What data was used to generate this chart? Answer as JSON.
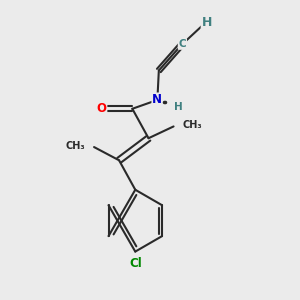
{
  "background_color": "#ebebeb",
  "bond_color": "#2a2a2a",
  "bond_width": 1.5,
  "atom_colors": {
    "O": "#ff0000",
    "N": "#0000cc",
    "Cl": "#008800",
    "C": "#408080",
    "H": "#408080"
  },
  "font_size_atom": 8.5,
  "font_size_small": 7.0,
  "fig_width": 3.0,
  "fig_height": 3.0,
  "dpi": 100
}
